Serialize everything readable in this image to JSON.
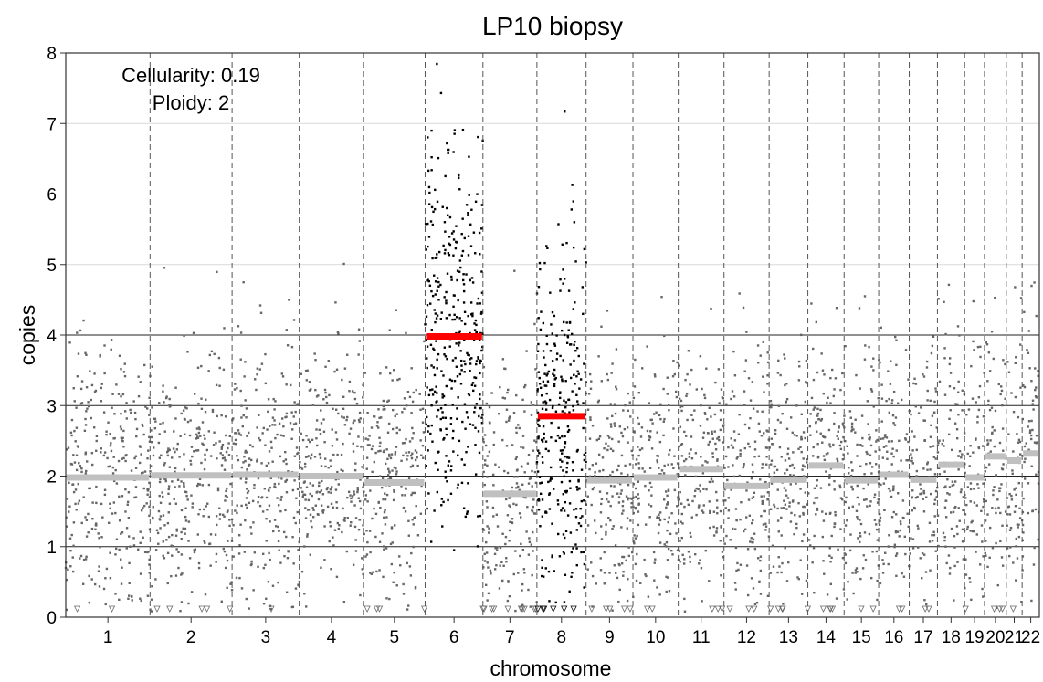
{
  "chart_data": {
    "type": "scatter",
    "title": "LP10 biopsy",
    "xlabel": "chromosome",
    "ylabel": "copies",
    "ylim": [
      0,
      8
    ],
    "y_ticks": [
      0,
      1,
      2,
      3,
      4,
      5,
      6,
      7,
      8
    ],
    "horizontal_lines": [
      1,
      2,
      3,
      4
    ],
    "annotations": [
      "Cellularity: 0.19",
      "Ploidy: 2"
    ],
    "chromosomes": [
      {
        "label": "1",
        "start": 0.0,
        "end": 248.95
      },
      {
        "label": "2",
        "start": 248.95,
        "end": 491.15
      },
      {
        "label": "3",
        "start": 491.15,
        "end": 689.45
      },
      {
        "label": "4",
        "start": 689.45,
        "end": 879.66
      },
      {
        "label": "5",
        "start": 879.66,
        "end": 1061.2
      },
      {
        "label": "6",
        "start": 1061.2,
        "end": 1232.0
      },
      {
        "label": "7",
        "start": 1232.0,
        "end": 1391.3
      },
      {
        "label": "8",
        "start": 1391.3,
        "end": 1536.5
      },
      {
        "label": "9",
        "start": 1536.5,
        "end": 1674.9
      },
      {
        "label": "10",
        "start": 1674.9,
        "end": 1808.7
      },
      {
        "label": "11",
        "start": 1808.7,
        "end": 1943.8
      },
      {
        "label": "12",
        "start": 1943.8,
        "end": 2077.1
      },
      {
        "label": "13",
        "start": 2077.1,
        "end": 2191.5
      },
      {
        "label": "14",
        "start": 2191.5,
        "end": 2298.5
      },
      {
        "label": "15",
        "start": 2298.5,
        "end": 2400.5
      },
      {
        "label": "16",
        "start": 2400.5,
        "end": 2490.8
      },
      {
        "label": "17",
        "start": 2490.8,
        "end": 2574.1
      },
      {
        "label": "18",
        "start": 2574.1,
        "end": 2654.4
      },
      {
        "label": "19",
        "start": 2654.4,
        "end": 2713.0
      },
      {
        "label": "20",
        "start": 2713.0,
        "end": 2777.5
      },
      {
        "label": "21",
        "start": 2777.5,
        "end": 2824.2
      },
      {
        "label": "22",
        "start": 2824.2,
        "end": 2875.0
      }
    ],
    "segments": [
      {
        "chrom": "1",
        "start": 0.0,
        "end": 248.95,
        "copies": 1.98
      },
      {
        "chrom": "2",
        "start": 248.95,
        "end": 491.15,
        "copies": 2.01
      },
      {
        "chrom": "3",
        "start": 491.15,
        "end": 689.45,
        "copies": 2.02
      },
      {
        "chrom": "4",
        "start": 689.45,
        "end": 879.66,
        "copies": 2.0
      },
      {
        "chrom": "5",
        "start": 879.66,
        "end": 1061.2,
        "copies": 1.91
      },
      {
        "chrom": "6",
        "start": 1061.2,
        "end": 1232.0,
        "copies": 3.98
      },
      {
        "chrom": "7",
        "start": 1232.0,
        "end": 1391.3,
        "copies": 1.75
      },
      {
        "chrom": "8",
        "start": 1391.3,
        "end": 1536.5,
        "copies": 2.85
      },
      {
        "chrom": "9",
        "start": 1536.5,
        "end": 1674.9,
        "copies": 1.94
      },
      {
        "chrom": "10",
        "start": 1674.9,
        "end": 1808.7,
        "copies": 1.98
      },
      {
        "chrom": "11",
        "start": 1808.7,
        "end": 1943.8,
        "copies": 2.1
      },
      {
        "chrom": "12",
        "start": 1943.8,
        "end": 2077.1,
        "copies": 1.86
      },
      {
        "chrom": "13",
        "start": 2077.1,
        "end": 2191.5,
        "copies": 1.95
      },
      {
        "chrom": "14",
        "start": 2191.5,
        "end": 2298.5,
        "copies": 2.15
      },
      {
        "chrom": "15",
        "start": 2298.5,
        "end": 2400.5,
        "copies": 1.94
      },
      {
        "chrom": "16",
        "start": 2400.5,
        "end": 2490.8,
        "copies": 2.02
      },
      {
        "chrom": "17",
        "start": 2490.8,
        "end": 2574.1,
        "copies": 1.95
      },
      {
        "chrom": "18",
        "start": 2574.1,
        "end": 2654.4,
        "copies": 2.16
      },
      {
        "chrom": "19",
        "start": 2654.4,
        "end": 2713.0,
        "copies": 1.98
      },
      {
        "chrom": "20",
        "start": 2713.0,
        "end": 2777.5,
        "copies": 2.28
      },
      {
        "chrom": "21",
        "start": 2777.5,
        "end": 2824.2,
        "copies": 2.22
      },
      {
        "chrom": "22",
        "start": 2824.2,
        "end": 2875.0,
        "copies": 2.32
      }
    ],
    "highlighted_chromosomes": [
      "6",
      "8"
    ],
    "colors": {
      "normal_segment": "#c0c0c0",
      "altered_segment": "#ff0000",
      "normal_points": "#666666",
      "altered_points": "#000000",
      "grid": "#d9d9d9",
      "copy_lines": "#222222",
      "chrom_divider": "#555555"
    },
    "grid": true
  }
}
